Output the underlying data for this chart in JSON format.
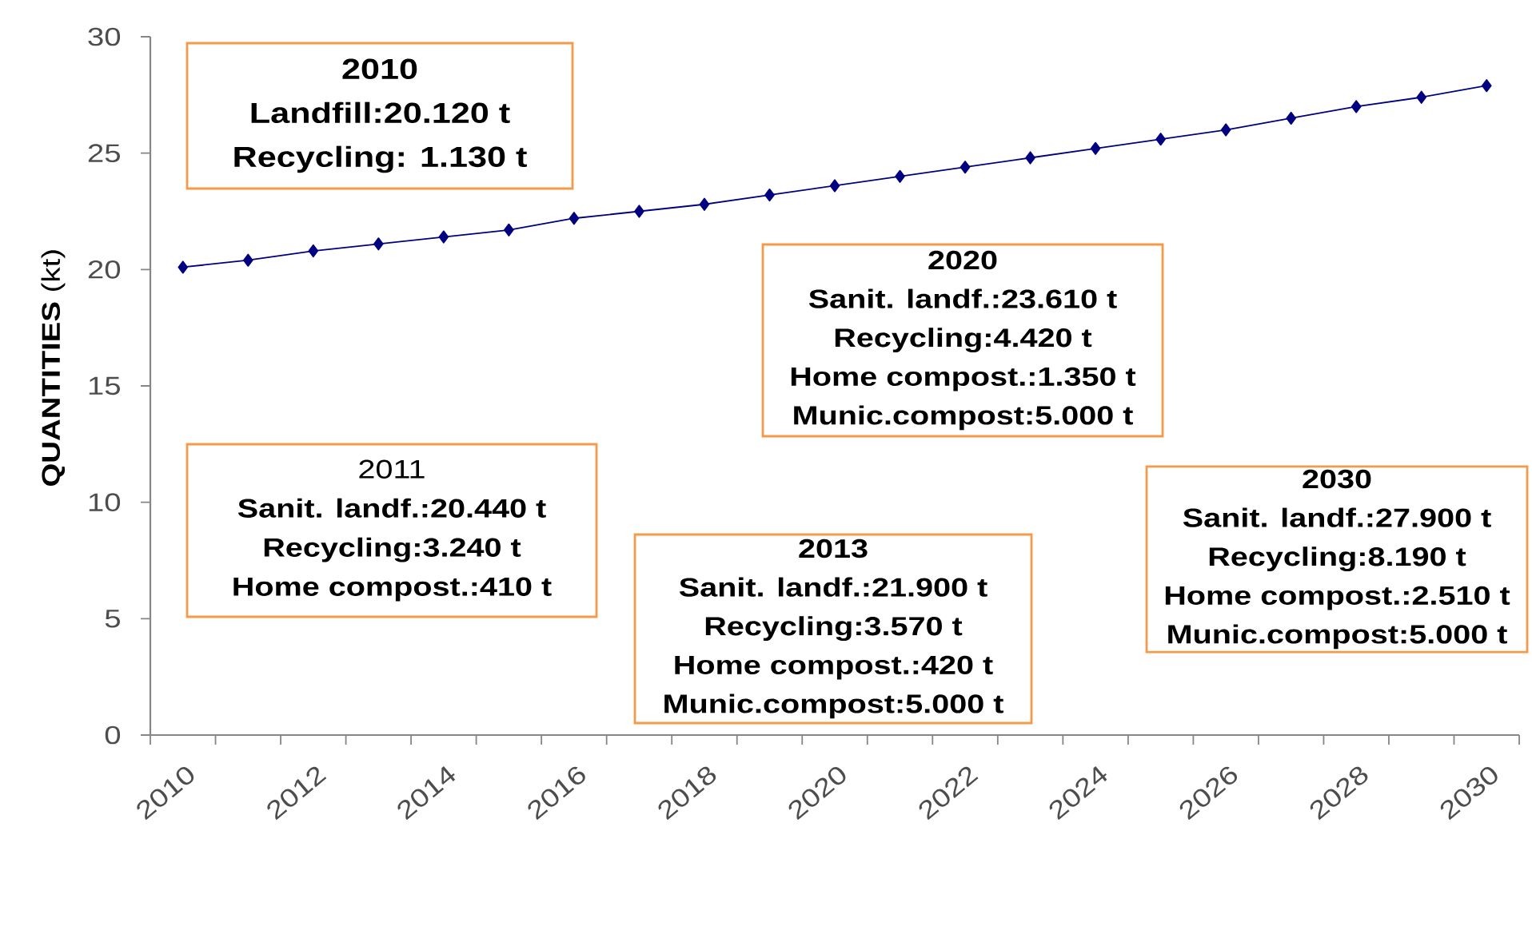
{
  "chart_data": {
    "type": "line",
    "ylabel": "**QUANTITIES** (kt)",
    "categories": [
      "2010",
      null,
      "2012",
      null,
      "2014",
      null,
      "2016",
      null,
      "2018",
      null,
      "2020",
      null,
      "2022",
      null,
      "2024",
      null,
      "2026",
      null,
      "2028",
      null,
      "2030"
    ],
    "series": [
      {
        "color": "#000080",
        "values": [
          20.1,
          20.4,
          20.8,
          21.1,
          21.4,
          21.7,
          22.2,
          22.5,
          22.8,
          23.2,
          23.6,
          24.0,
          24.4,
          24.8,
          25.2,
          25.6,
          26.0,
          26.5,
          27.0,
          27.4,
          27.9
        ]
      }
    ],
    "ylim": [
      0,
      30
    ],
    "yticks": [
      0,
      5,
      10,
      15,
      20,
      25,
      30
    ],
    "marker": "diamond",
    "annotations": [
      "2010",
      "Landfill:20.120 t",
      "Recycling: 1.130 t",
      "2011",
      "Sanit. landf.:20.440 t",
      "Recycling:3.240 t",
      "Home compost.:410 t",
      "2020",
      "Sanit. landf.:23.610 t",
      "Recycling:4.420 t",
      "Home compost.:1.350 t",
      "Munic.compost:5.000 t",
      "2013",
      "Sanit. landf.:21.900 t",
      "Recycling:3.570 t",
      "Home compost.:420 t",
      "Munic.compost:5.000 t",
      "2030",
      "Sanit. landf.:27.900 t",
      "Recycling:8.190 t",
      "Home compost.:2.510 t",
      "Munic.compost:5.000 t"
    ]
  }
}
